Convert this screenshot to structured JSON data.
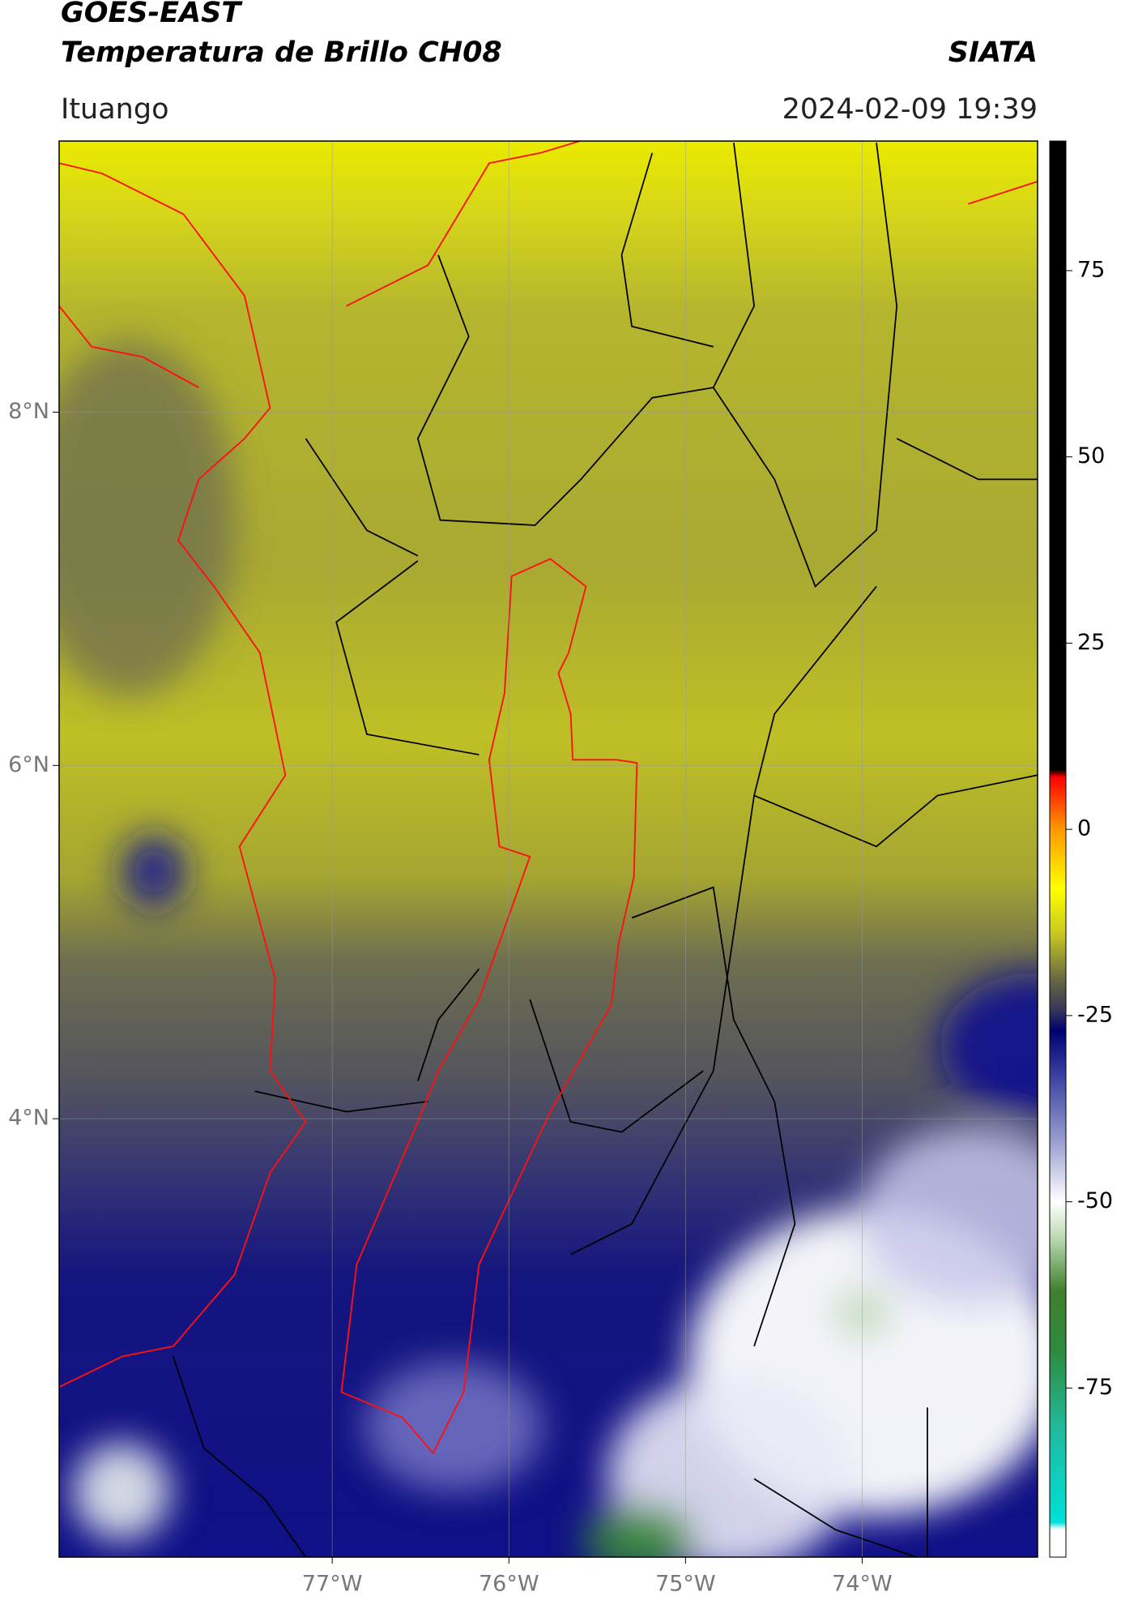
{
  "chart_data": {
    "type": "raster-map",
    "title": "GOES-EAST",
    "subtitle": "Temperatura de Brillo CH08",
    "source": "SIATA",
    "location": "Ituango",
    "datetime": "2024-02-09 19:39",
    "xlim": [
      -78.546,
      -73.007
    ],
    "ylim": [
      1.518,
      9.535
    ],
    "xticks": [
      {
        "value": -77,
        "label": "77°W"
      },
      {
        "value": -76,
        "label": "76°W"
      },
      {
        "value": -75,
        "label": "75°W"
      },
      {
        "value": -74,
        "label": "74°W"
      }
    ],
    "yticks": [
      {
        "value": 8,
        "label": "8°N"
      },
      {
        "value": 6,
        "label": "6°N"
      },
      {
        "value": 4,
        "label": "4°N"
      }
    ],
    "grid": true,
    "colorbar": {
      "clim": [
        -97.7,
        92.4
      ],
      "ticks": [
        75,
        50,
        25,
        0,
        -25,
        -50,
        -75
      ],
      "colormap": [
        {
          "value": -97.7,
          "color": "#ffffff"
        },
        {
          "value": -94,
          "color": "#ffffff"
        },
        {
          "value": -93,
          "color": "#00e0d8"
        },
        {
          "value": -80,
          "color": "#22b89a"
        },
        {
          "value": -70,
          "color": "#2e8b3e"
        },
        {
          "value": -62,
          "color": "#3f7f2c"
        },
        {
          "value": -55,
          "color": "#b8d8b0"
        },
        {
          "value": -50,
          "color": "#ffffff"
        },
        {
          "value": -42,
          "color": "#9aa0d0"
        },
        {
          "value": -33,
          "color": "#3a40a0"
        },
        {
          "value": -27,
          "color": "#000070"
        },
        {
          "value": -24,
          "color": "#3a3a5a"
        },
        {
          "value": -20,
          "color": "#6a6a40"
        },
        {
          "value": -14,
          "color": "#c8c820"
        },
        {
          "value": -8,
          "color": "#ffff00"
        },
        {
          "value": 0,
          "color": "#ff9900"
        },
        {
          "value": 7,
          "color": "#ff0000"
        },
        {
          "value": 8,
          "color": "#000000"
        },
        {
          "value": 92.4,
          "color": "#000000"
        }
      ]
    }
  }
}
